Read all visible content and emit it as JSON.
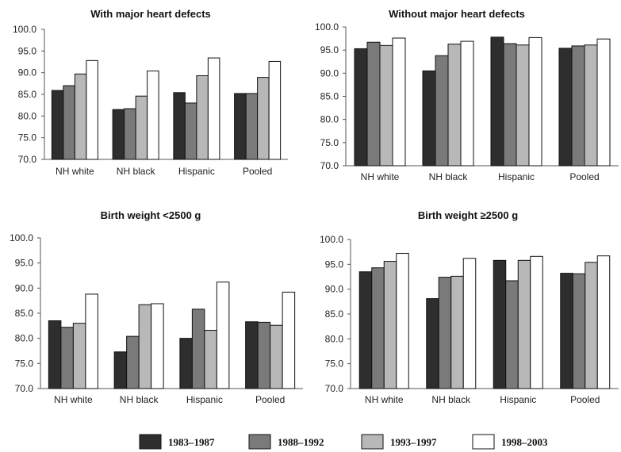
{
  "chart_data": [
    {
      "type": "bar",
      "title": "With major heart defects",
      "categories": [
        "NH white",
        "NH black",
        "Hispanic",
        "Pooled"
      ],
      "ylim": [
        70,
        100
      ],
      "yticks": [
        "70.0",
        "75.0",
        "80.0",
        "85.0",
        "90.0",
        "95.0",
        "100.0"
      ],
      "series": [
        {
          "name": "1983–1987",
          "values": [
            85.9,
            81.5,
            85.4,
            85.2
          ]
        },
        {
          "name": "1988–1992",
          "values": [
            87.0,
            81.7,
            83.0,
            85.2
          ]
        },
        {
          "name": "1993–1997",
          "values": [
            89.7,
            84.6,
            89.3,
            88.9
          ]
        },
        {
          "name": "1998–2003",
          "values": [
            92.8,
            90.4,
            93.4,
            92.6
          ]
        }
      ]
    },
    {
      "type": "bar",
      "title": "Without major heart defects",
      "categories": [
        "NH white",
        "NH black",
        "Hispanic",
        "Pooled"
      ],
      "ylim": [
        70,
        100
      ],
      "yticks": [
        "70.0",
        "75.0",
        "80.0",
        "85.0",
        "90.0",
        "95.0",
        "100.0"
      ],
      "series": [
        {
          "name": "1983–1987",
          "values": [
            95.3,
            90.5,
            97.8,
            95.4
          ]
        },
        {
          "name": "1988–1992",
          "values": [
            96.7,
            93.8,
            96.4,
            95.9
          ]
        },
        {
          "name": "1993–1997",
          "values": [
            96.0,
            96.3,
            96.1,
            96.1
          ]
        },
        {
          "name": "1998–2003",
          "values": [
            97.6,
            96.9,
            97.7,
            97.4
          ]
        }
      ]
    },
    {
      "type": "bar",
      "title": "Birth weight <2500 g",
      "categories": [
        "NH white",
        "NH black",
        "Hispanic",
        "Pooled"
      ],
      "ylim": [
        70,
        100
      ],
      "yticks": [
        "70.0",
        "75.0",
        "80.0",
        "85.0",
        "90.0",
        "95.0",
        "100.0"
      ],
      "series": [
        {
          "name": "1983–1987",
          "values": [
            83.5,
            77.3,
            80.0,
            83.3
          ]
        },
        {
          "name": "1988–1992",
          "values": [
            82.2,
            80.4,
            85.8,
            83.2
          ]
        },
        {
          "name": "1993–1997",
          "values": [
            83.0,
            86.7,
            81.6,
            82.6
          ]
        },
        {
          "name": "1998–2003",
          "values": [
            88.8,
            86.9,
            91.2,
            89.2
          ]
        }
      ]
    },
    {
      "type": "bar",
      "title": "Birth weight ≥2500 g",
      "categories": [
        "NH white",
        "NH black",
        "Hispanic",
        "Pooled"
      ],
      "ylim": [
        70,
        100
      ],
      "yticks": [
        "70.0",
        "75.0",
        "80.0",
        "85.0",
        "90.0",
        "95.0",
        "100.0"
      ],
      "series": [
        {
          "name": "1983–1987",
          "values": [
            93.5,
            88.1,
            95.8,
            93.2
          ]
        },
        {
          "name": "1988–1992",
          "values": [
            94.3,
            92.4,
            91.7,
            93.1
          ]
        },
        {
          "name": "1993–1997",
          "values": [
            95.6,
            92.6,
            95.8,
            95.4
          ]
        },
        {
          "name": "1998–2003",
          "values": [
            97.2,
            96.2,
            96.6,
            96.7
          ]
        }
      ]
    }
  ],
  "legend": [
    {
      "label": "1983–1987",
      "color": "#2e2e2e"
    },
    {
      "label": "1988–1992",
      "color": "#7a7a7a"
    },
    {
      "label": "1993–1997",
      "color": "#b8b8b8"
    },
    {
      "label": "1998–2003",
      "color": "#ffffff"
    }
  ]
}
